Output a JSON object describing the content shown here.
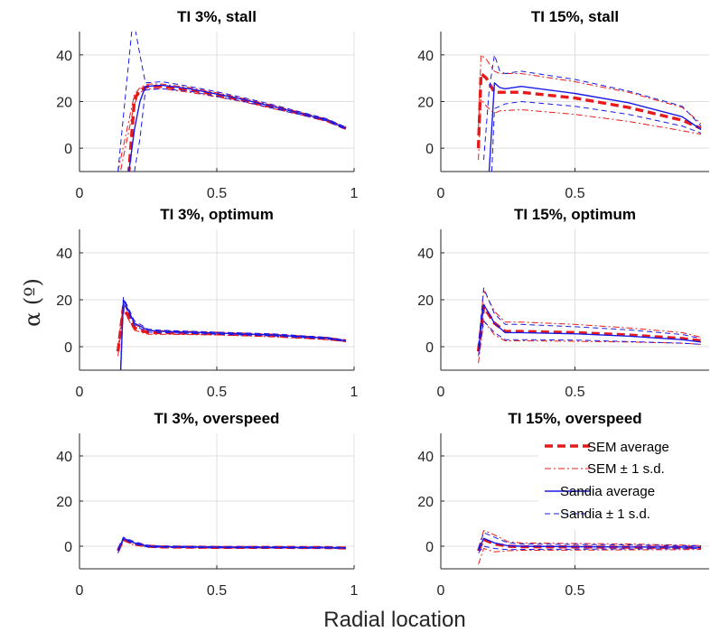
{
  "figure": {
    "xlabel": "Radial location",
    "ylabel": "α (º)"
  },
  "legend": {
    "placement": "bottom-right panel, upper-right",
    "entries": [
      {
        "label": "SEM average",
        "color": "#e8191a",
        "style": "thick-dash"
      },
      {
        "label": "SEM ± 1 s.d.",
        "color": "#e8191a",
        "style": "dash-dot"
      },
      {
        "label": "Sandia average",
        "color": "#1a1ae6",
        "style": "solid"
      },
      {
        "label": "Sandia ± 1 s.d.",
        "color": "#1a1ae6",
        "style": "dash"
      }
    ]
  },
  "colors": {
    "sem": "#e8191a",
    "sandia": "#1a1ae6",
    "grid": "#dfdfdf"
  },
  "chart_data": [
    {
      "type": "line",
      "title": "TI 3%, stall",
      "xlim": [
        0,
        1
      ],
      "ylim": [
        -10,
        50
      ],
      "grid": true,
      "xticks": [
        0,
        0.5,
        1
      ],
      "xticklabels": [
        "0",
        "0.5",
        "1"
      ],
      "yticks": [
        0,
        20,
        40
      ],
      "yticklabels": [
        "0",
        "20",
        "40"
      ],
      "series": [
        {
          "name": "SEM average",
          "x": [
            0.14,
            0.18,
            0.2,
            0.22,
            0.25,
            0.3,
            0.4,
            0.5,
            0.6,
            0.7,
            0.8,
            0.9,
            0.97
          ],
          "y": [
            -15,
            -10,
            21,
            25,
            26.5,
            26.5,
            25,
            23,
            20.5,
            17.8,
            15,
            12,
            8.5
          ]
        },
        {
          "name": "SEM + 1 s.d.",
          "x": [
            0.14,
            0.2,
            0.22,
            0.25,
            0.3,
            0.4,
            0.5,
            0.6,
            0.7,
            0.8,
            0.9,
            0.97
          ],
          "y": [
            -10,
            23,
            26,
            27.5,
            27.5,
            26,
            23.8,
            21.2,
            18.5,
            15.5,
            12.5,
            9
          ]
        },
        {
          "name": "SEM - 1 s.d.",
          "x": [
            0.14,
            0.2,
            0.22,
            0.25,
            0.3,
            0.4,
            0.5,
            0.6,
            0.7,
            0.8,
            0.9,
            0.97
          ],
          "y": [
            -15,
            19,
            24,
            25.5,
            25.5,
            24,
            22,
            19.8,
            17.1,
            14.5,
            11.5,
            8
          ]
        },
        {
          "name": "Sandia average",
          "x": [
            0.18,
            0.2,
            0.22,
            0.24,
            0.3,
            0.4,
            0.5,
            0.6,
            0.7,
            0.8,
            0.9,
            0.97
          ],
          "y": [
            -10,
            8,
            20,
            26.5,
            27,
            25.5,
            23.2,
            20.8,
            18,
            15.1,
            12.2,
            8.5
          ]
        },
        {
          "name": "Sandia + 1 s.d.",
          "x": [
            0.14,
            0.19,
            0.2,
            0.22,
            0.24,
            0.3,
            0.4,
            0.5,
            0.6,
            0.7,
            0.8,
            0.9,
            0.97
          ],
          "y": [
            -10,
            50,
            53,
            40,
            28,
            28.5,
            26.5,
            24.2,
            21.6,
            18.8,
            15.7,
            12.7,
            9
          ]
        },
        {
          "name": "Sandia - 1 s.d.",
          "x": [
            0.2,
            0.22,
            0.24,
            0.3,
            0.4,
            0.5,
            0.6,
            0.7,
            0.8,
            0.9,
            0.97
          ],
          "y": [
            -10,
            4,
            25,
            25.5,
            24.5,
            22.2,
            20,
            17.2,
            14.5,
            11.7,
            8
          ]
        }
      ]
    },
    {
      "type": "line",
      "title": "TI 15%, stall",
      "xlim": [
        0,
        1
      ],
      "ylim": [
        -10,
        50
      ],
      "grid": true,
      "xticks": [
        0,
        0.5
      ],
      "xticklabels": [
        "0",
        "0.5"
      ],
      "yticks": [
        0,
        20,
        40
      ],
      "yticklabels": [
        "0",
        "20",
        "40"
      ],
      "series": [
        {
          "name": "SEM average",
          "x": [
            0.14,
            0.15,
            0.17,
            0.2,
            0.22,
            0.3,
            0.5,
            0.7,
            0.9,
            0.97
          ],
          "y": [
            0,
            32,
            30,
            24,
            24,
            24,
            21.5,
            17.5,
            12,
            8.5
          ]
        },
        {
          "name": "SEM + 1 s.d.",
          "x": [
            0.14,
            0.15,
            0.17,
            0.2,
            0.22,
            0.3,
            0.5,
            0.7,
            0.9,
            0.97
          ],
          "y": [
            8,
            40,
            38,
            33,
            32,
            32,
            28.5,
            24,
            17.5,
            10.5
          ]
        },
        {
          "name": "SEM - 1 s.d.",
          "x": [
            0.14,
            0.15,
            0.17,
            0.2,
            0.22,
            0.3,
            0.5,
            0.7,
            0.9,
            0.97
          ],
          "y": [
            -5,
            21,
            18,
            15,
            16,
            16.5,
            14.5,
            11.5,
            7.5,
            6
          ]
        },
        {
          "name": "Sandia average",
          "x": [
            0.18,
            0.2,
            0.22,
            0.24,
            0.3,
            0.5,
            0.7,
            0.9,
            0.97
          ],
          "y": [
            -10,
            28,
            26,
            25.5,
            26.5,
            23.5,
            19.5,
            13.5,
            8
          ]
        },
        {
          "name": "Sandia + 1 s.d.",
          "x": [
            0.16,
            0.18,
            0.2,
            0.22,
            0.24,
            0.3,
            0.5,
            0.7,
            0.9,
            0.97
          ],
          "y": [
            -5,
            25,
            40,
            33,
            32,
            33,
            29.5,
            24.5,
            18,
            9.5
          ]
        },
        {
          "name": "Sandia - 1 s.d.",
          "x": [
            0.19,
            0.2,
            0.22,
            0.24,
            0.3,
            0.5,
            0.7,
            0.9,
            0.97
          ],
          "y": [
            -10,
            17,
            18,
            19,
            20,
            18,
            14.5,
            9.5,
            6.5
          ]
        }
      ]
    },
    {
      "type": "line",
      "title": "TI 3%, optimum",
      "xlim": [
        0,
        1
      ],
      "ylim": [
        -10,
        50
      ],
      "grid": true,
      "xticks": [
        0,
        0.5,
        1
      ],
      "xticklabels": [
        "0",
        "0.5",
        "1"
      ],
      "yticks": [
        0,
        20,
        40
      ],
      "yticklabels": [
        "0",
        "20",
        "40"
      ],
      "series": [
        {
          "name": "SEM average",
          "x": [
            0.14,
            0.16,
            0.2,
            0.25,
            0.3,
            0.5,
            0.7,
            0.9,
            0.97
          ],
          "y": [
            -2,
            17,
            8,
            6,
            6,
            5.5,
            4.8,
            3.5,
            2.5
          ]
        },
        {
          "name": "SEM + 1 s.d.",
          "x": [
            0.14,
            0.16,
            0.2,
            0.25,
            0.3,
            0.5,
            0.7,
            0.9,
            0.97
          ],
          "y": [
            0,
            18.5,
            9.5,
            6.8,
            6.8,
            6.2,
            5.4,
            4,
            2.7
          ]
        },
        {
          "name": "SEM - 1 s.d.",
          "x": [
            0.14,
            0.16,
            0.2,
            0.25,
            0.3,
            0.5,
            0.7,
            0.9,
            0.97
          ],
          "y": [
            -4,
            15.5,
            7,
            5.3,
            5.3,
            5,
            4.2,
            3,
            2.2
          ]
        },
        {
          "name": "Sandia average",
          "x": [
            0.15,
            0.16,
            0.2,
            0.25,
            0.3,
            0.5,
            0.7,
            0.9,
            0.97
          ],
          "y": [
            -10,
            20,
            10,
            7,
            6.5,
            5.8,
            5,
            3.7,
            2.5
          ]
        },
        {
          "name": "Sandia + 1 s.d.",
          "x": [
            0.15,
            0.16,
            0.2,
            0.25,
            0.3,
            0.5,
            0.7,
            0.9,
            0.97
          ],
          "y": [
            -8,
            21,
            11,
            7.5,
            7,
            6.2,
            5.5,
            4,
            2.8
          ]
        },
        {
          "name": "Sandia - 1 s.d.",
          "x": [
            0.15,
            0.16,
            0.2,
            0.25,
            0.3,
            0.5,
            0.7,
            0.9,
            0.97
          ],
          "y": [
            -10,
            19,
            9,
            6.2,
            6,
            5.3,
            4.6,
            3.3,
            2.3
          ]
        }
      ]
    },
    {
      "type": "line",
      "title": "TI 15%, optimum",
      "xlim": [
        0,
        1
      ],
      "ylim": [
        -10,
        50
      ],
      "grid": true,
      "xticks": [
        0,
        0.5
      ],
      "xticklabels": [
        "0",
        "0.5"
      ],
      "yticks": [
        0,
        20,
        40
      ],
      "yticklabels": [
        "0",
        "20",
        "40"
      ],
      "series": [
        {
          "name": "SEM average",
          "x": [
            0.14,
            0.16,
            0.2,
            0.24,
            0.3,
            0.5,
            0.7,
            0.9,
            0.97
          ],
          "y": [
            -2,
            17,
            10,
            6.5,
            6.5,
            6,
            5,
            3.5,
            2.5
          ]
        },
        {
          "name": "SEM + 1 s.d.",
          "x": [
            0.14,
            0.16,
            0.2,
            0.24,
            0.3,
            0.5,
            0.7,
            0.9,
            0.97
          ],
          "y": [
            0,
            24,
            15,
            10.5,
            10.5,
            9.5,
            8,
            6,
            4
          ]
        },
        {
          "name": "SEM - 1 s.d.",
          "x": [
            0.14,
            0.16,
            0.2,
            0.24,
            0.3,
            0.5,
            0.7,
            0.9,
            0.97
          ],
          "y": [
            -7,
            11,
            5,
            2.5,
            2.5,
            2.3,
            2,
            1.5,
            1
          ]
        },
        {
          "name": "Sandia average",
          "x": [
            0.14,
            0.16,
            0.2,
            0.24,
            0.3,
            0.5,
            0.7,
            0.9,
            0.97
          ],
          "y": [
            -2,
            18,
            10,
            6,
            6,
            5.5,
            4.5,
            3,
            2
          ]
        },
        {
          "name": "Sandia + 1 s.d.",
          "x": [
            0.14,
            0.16,
            0.2,
            0.24,
            0.3,
            0.5,
            0.7,
            0.9,
            0.97
          ],
          "y": [
            0,
            25,
            14,
            9.5,
            9.5,
            8.5,
            7.2,
            5.2,
            3.5
          ]
        },
        {
          "name": "Sandia - 1 s.d.",
          "x": [
            0.14,
            0.16,
            0.2,
            0.24,
            0.3,
            0.5,
            0.7,
            0.9,
            0.97
          ],
          "y": [
            -4,
            11,
            6,
            3,
            3,
            2.8,
            2.2,
            1.5,
            1
          ]
        }
      ]
    },
    {
      "type": "line",
      "title": "TI 3%, overspeed",
      "xlim": [
        0,
        1
      ],
      "ylim": [
        -10,
        50
      ],
      "grid": true,
      "xticks": [
        0,
        0.5,
        1
      ],
      "xticklabels": [
        "0",
        "0.5",
        "1"
      ],
      "yticks": [
        0,
        20,
        40
      ],
      "yticklabels": [
        "0",
        "20",
        "40"
      ],
      "series": [
        {
          "name": "SEM average",
          "x": [
            0.14,
            0.16,
            0.2,
            0.25,
            0.3,
            0.5,
            0.7,
            0.9,
            0.97
          ],
          "y": [
            -2,
            3,
            1,
            0,
            -0.3,
            -0.5,
            -0.5,
            -0.6,
            -0.8
          ]
        },
        {
          "name": "SEM + 1 s.d.",
          "x": [
            0.14,
            0.16,
            0.2,
            0.25,
            0.3,
            0.5,
            0.7,
            0.9,
            0.97
          ],
          "y": [
            -1,
            3.5,
            1.5,
            0.3,
            0,
            -0.2,
            -0.3,
            -0.4,
            -0.6
          ]
        },
        {
          "name": "SEM - 1 s.d.",
          "x": [
            0.14,
            0.16,
            0.2,
            0.25,
            0.3,
            0.5,
            0.7,
            0.9,
            0.97
          ],
          "y": [
            -3,
            2.5,
            0.5,
            -0.3,
            -0.6,
            -0.8,
            -0.8,
            -0.9,
            -1
          ]
        },
        {
          "name": "Sandia average",
          "x": [
            0.14,
            0.16,
            0.2,
            0.25,
            0.3,
            0.5,
            0.7,
            0.9,
            0.97
          ],
          "y": [
            -2,
            3.5,
            1.5,
            0,
            -0.2,
            -0.4,
            -0.5,
            -0.6,
            -0.8
          ]
        },
        {
          "name": "Sandia + 1 s.d.",
          "x": [
            0.14,
            0.16,
            0.2,
            0.25,
            0.3,
            0.5,
            0.7,
            0.9,
            0.97
          ],
          "y": [
            -1,
            4,
            2,
            0.4,
            0.1,
            -0.1,
            -0.2,
            -0.3,
            -0.5
          ]
        },
        {
          "name": "Sandia - 1 s.d.",
          "x": [
            0.14,
            0.16,
            0.2,
            0.25,
            0.3,
            0.5,
            0.7,
            0.9,
            0.97
          ],
          "y": [
            -3,
            3,
            1,
            -0.4,
            -0.5,
            -0.7,
            -0.8,
            -0.9,
            -1
          ]
        }
      ]
    },
    {
      "type": "line",
      "title": "TI 15%, overspeed",
      "xlim": [
        0,
        1
      ],
      "ylim": [
        -10,
        50
      ],
      "grid": true,
      "xticks": [
        0,
        0.5
      ],
      "xticklabels": [
        "0",
        "0.5"
      ],
      "yticks": [
        0,
        20,
        40
      ],
      "yticklabels": [
        "0",
        "20",
        "40"
      ],
      "series": [
        {
          "name": "SEM average",
          "x": [
            0.14,
            0.16,
            0.2,
            0.25,
            0.3,
            0.5,
            0.7,
            0.9,
            0.97
          ],
          "y": [
            -2,
            3,
            1,
            0,
            -0.2,
            -0.3,
            -0.4,
            -0.5,
            -0.6
          ]
        },
        {
          "name": "SEM + 1 s.d.",
          "x": [
            0.14,
            0.16,
            0.2,
            0.25,
            0.3,
            0.5,
            0.7,
            0.9,
            0.97
          ],
          "y": [
            -1,
            7,
            5,
            2,
            1.5,
            1.2,
            1,
            0.5,
            0.3
          ]
        },
        {
          "name": "SEM - 1 s.d.",
          "x": [
            0.14,
            0.16,
            0.2,
            0.25,
            0.3,
            0.5,
            0.7,
            0.9,
            0.97
          ],
          "y": [
            -8,
            -1,
            -2.5,
            -2,
            -1.8,
            -1.7,
            -1.6,
            -1.5,
            -1.4
          ]
        },
        {
          "name": "Sandia average",
          "x": [
            0.14,
            0.16,
            0.2,
            0.25,
            0.3,
            0.5,
            0.7,
            0.9,
            0.97
          ],
          "y": [
            -2,
            3.5,
            1.5,
            0.2,
            0,
            -0.2,
            -0.3,
            -0.4,
            -0.5
          ]
        },
        {
          "name": "Sandia + 1 s.d.",
          "x": [
            0.14,
            0.16,
            0.2,
            0.25,
            0.3,
            0.5,
            0.7,
            0.9,
            0.97
          ],
          "y": [
            -1,
            6,
            4,
            1.5,
            1,
            0.8,
            0.6,
            0.3,
            0.2
          ]
        },
        {
          "name": "Sandia - 1 s.d.",
          "x": [
            0.14,
            0.16,
            0.2,
            0.25,
            0.3,
            0.5,
            0.7,
            0.9,
            0.97
          ],
          "y": [
            -3,
            0,
            -1,
            -1.5,
            -1.4,
            -1.3,
            -1.2,
            -1.1,
            -1
          ]
        }
      ]
    }
  ]
}
